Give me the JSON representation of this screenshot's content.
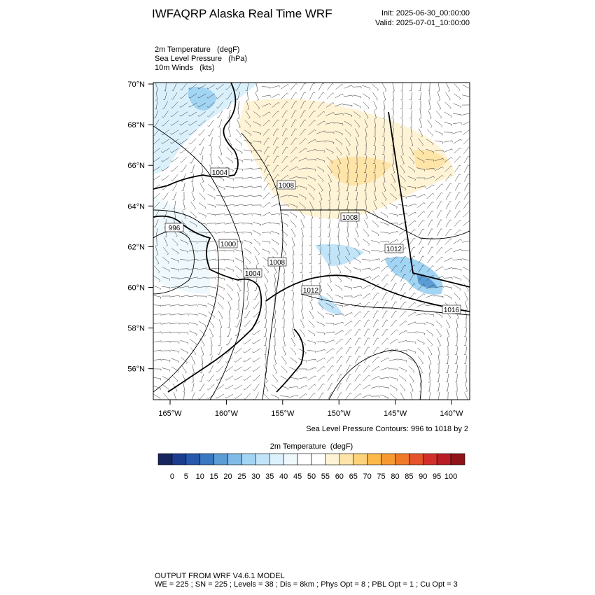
{
  "header": {
    "title": "IWFAQRP Alaska Real Time WRF",
    "init": "Init: 2025-06-30_00:00:00",
    "valid": "Valid: 2025-07-01_10:00:00"
  },
  "fields": [
    "2m Temperature   (degF)",
    "Sea Level Pressure   (hPa)",
    "10m Winds   (kts)"
  ],
  "map": {
    "lat_ticks": [
      "70°N",
      "68°N",
      "66°N",
      "64°N",
      "62°N",
      "60°N",
      "58°N",
      "56°N"
    ],
    "lon_ticks": [
      "165°W",
      "160°W",
      "155°W",
      "150°W",
      "145°W",
      "140°W"
    ],
    "contour_labels": [
      "1004",
      "1008",
      "996",
      "1000",
      "1004",
      "1008",
      "1008",
      "1012",
      "1012",
      "1016"
    ],
    "contour_note": "Sea Level Pressure Contours: 996 to 1018 by 2"
  },
  "colorbar": {
    "title": "2m Temperature  (degF)",
    "labels": [
      0,
      5,
      10,
      15,
      20,
      25,
      30,
      35,
      40,
      45,
      50,
      55,
      60,
      65,
      70,
      75,
      80,
      85,
      90,
      95,
      100
    ],
    "colors": [
      "#18265e",
      "#1c3d8e",
      "#2659ab",
      "#3a78c2",
      "#5b9dd4",
      "#7fbbe6",
      "#a2d4f3",
      "#c1e4f8",
      "#dcf1fb",
      "#eef8fd",
      "#ffffff",
      "#ffffff",
      "#fff3d6",
      "#ffe4a8",
      "#fdd27a",
      "#fbb94a",
      "#f79a32",
      "#ef7a2a",
      "#e4532a",
      "#d32f2a",
      "#b91c24",
      "#8e1419"
    ]
  },
  "footer": {
    "line1": "OUTPUT FROM WRF V4.6.1 MODEL",
    "line2": "WE = 225 ; SN = 225 ; Levels = 38 ; Dis = 8km ; Phys Opt = 8 ; PBL Opt = 1 ; Cu Opt = 3"
  }
}
